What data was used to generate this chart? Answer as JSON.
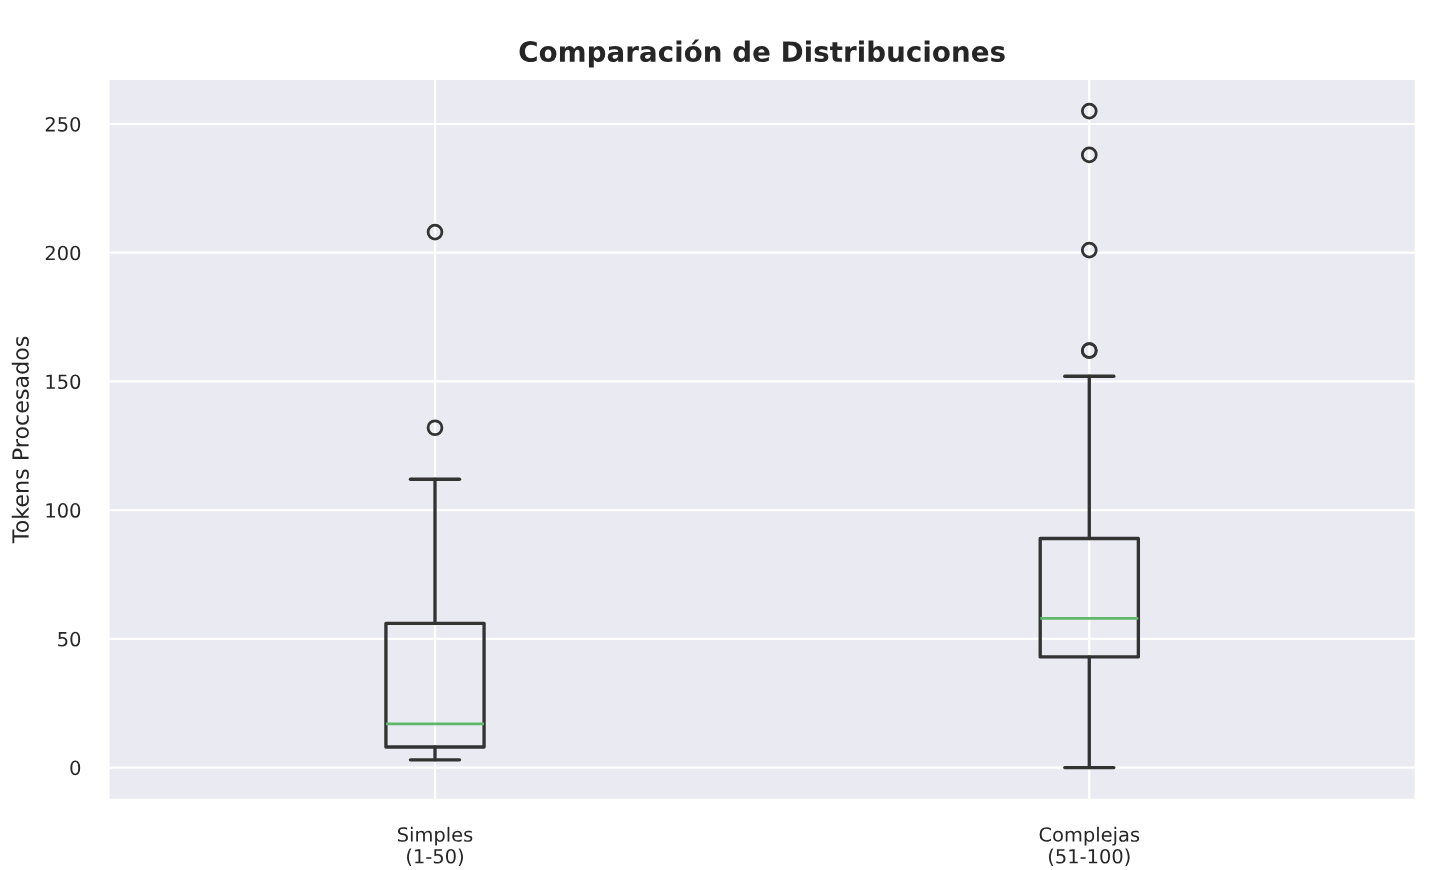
{
  "chart_data": {
    "type": "box",
    "title": "Comparación de Distribuciones",
    "ylabel": "Tokens Procesados",
    "categories": [
      "Simples\n(1-50)",
      "Complejas\n(51-100)"
    ],
    "boxes": [
      {
        "low": 3,
        "q1": 8,
        "median": 17,
        "q3": 56,
        "high": 112,
        "outliers": [
          132,
          208
        ]
      },
      {
        "low": 0,
        "q1": 43,
        "median": 58,
        "q3": 89,
        "high": 152,
        "outliers": [
          162,
          162,
          201,
          238,
          255
        ]
      }
    ],
    "color": "#333333",
    "ylim": [
      -12.75,
      267.75
    ],
    "yticks": [
      0,
      50,
      100,
      150,
      200,
      250
    ],
    "grid": true
  }
}
